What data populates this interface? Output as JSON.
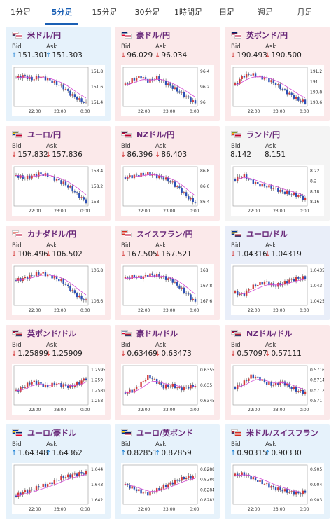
{
  "tabs": [
    {
      "label": "1分足",
      "active": false
    },
    {
      "label": "5分足",
      "active": true
    },
    {
      "label": "15分足",
      "active": false
    },
    {
      "label": "30分足",
      "active": false
    },
    {
      "label": "1時間足",
      "active": false
    },
    {
      "label": "日足",
      "active": false
    },
    {
      "label": "週足",
      "active": false
    },
    {
      "label": "月足",
      "active": false
    }
  ],
  "bid_label": "Bid",
  "ask_label": "Ask",
  "colors": {
    "down_bg": "#fbe9ea",
    "up_bg": "#e6f2fb",
    "flat_bg": "#f4f4f4",
    "down_arrow": "#d43a3a",
    "up_arrow": "#1a7fd4",
    "title": "#6a2a7a",
    "tab_active": "#1a5fb4",
    "ma_line": "#d44ad4",
    "candle_up": "#d13b3b",
    "candle_down": "#2b4fb5"
  },
  "cards": [
    {
      "name": "米ドル/円",
      "flags": [
        "us",
        "jp"
      ],
      "state": "up",
      "bid": "151.301",
      "ask": "151.303",
      "bid_dir": "up",
      "ask_dir": "up",
      "yticks": [
        "151.8",
        "151.6",
        "151.4"
      ],
      "xticks": [
        "22:00",
        "23:00",
        "0:00"
      ],
      "trend": [
        0.75,
        0.8,
        0.7,
        0.78,
        0.72,
        0.6,
        0.5,
        0.3,
        0.15,
        0.05
      ]
    },
    {
      "name": "豪ドル/円",
      "flags": [
        "au",
        "jp"
      ],
      "state": "down",
      "bid": "96.029",
      "ask": "96.034",
      "bid_dir": "down",
      "ask_dir": "down",
      "yticks": [
        "96.4",
        "96.2",
        "96"
      ],
      "xticks": [
        "22:00",
        "23:00",
        "0:00"
      ],
      "trend": [
        0.55,
        0.7,
        0.78,
        0.65,
        0.75,
        0.62,
        0.5,
        0.35,
        0.2,
        0.05
      ]
    },
    {
      "name": "英ポンド/円",
      "flags": [
        "gb",
        "jp"
      ],
      "state": "down",
      "bid": "190.493",
      "ask": "190.500",
      "bid_dir": "down",
      "ask_dir": "down",
      "yticks": [
        "191.2",
        "191",
        "190.8",
        "190.6"
      ],
      "xticks": [
        "22:00",
        "23:00",
        "0:00"
      ],
      "trend": [
        0.55,
        0.8,
        0.85,
        0.78,
        0.72,
        0.6,
        0.45,
        0.3,
        0.15,
        0.08
      ]
    },
    {
      "name": "ユーロ/円",
      "flags": [
        "eu",
        "jp"
      ],
      "state": "down",
      "bid": "157.832",
      "ask": "157.836",
      "bid_dir": "down",
      "ask_dir": "down",
      "yticks": [
        "158.4",
        "158.2",
        "158"
      ],
      "xticks": [
        "22:00",
        "23:00",
        "0:00"
      ],
      "trend": [
        0.8,
        0.72,
        0.78,
        0.85,
        0.8,
        0.7,
        0.6,
        0.45,
        0.25,
        0.08
      ]
    },
    {
      "name": "NZドル/円",
      "flags": [
        "nz",
        "jp"
      ],
      "state": "down",
      "bid": "86.396",
      "ask": "86.403",
      "bid_dir": "down",
      "ask_dir": "down",
      "yticks": [
        "86.8",
        "86.6",
        "86.4"
      ],
      "xticks": [
        "22:00",
        "23:00",
        "0:00"
      ],
      "trend": [
        0.75,
        0.78,
        0.82,
        0.85,
        0.78,
        0.72,
        0.6,
        0.42,
        0.2,
        0.05
      ]
    },
    {
      "name": "ランド/円",
      "flags": [
        "za",
        "jp"
      ],
      "state": "flat",
      "bid": "8.142",
      "ask": "8.151",
      "bid_dir": "none",
      "ask_dir": "none",
      "yticks": [
        "8.22",
        "8.2",
        "8.18",
        "8.16"
      ],
      "xticks": [
        "22:00",
        "23:00",
        "0:00"
      ],
      "trend": [
        0.7,
        0.8,
        0.65,
        0.55,
        0.5,
        0.45,
        0.35,
        0.3,
        0.25,
        0.15
      ]
    },
    {
      "name": "カナダドル/円",
      "flags": [
        "ca",
        "jp"
      ],
      "state": "down",
      "bid": "106.496",
      "ask": "106.502",
      "bid_dir": "down",
      "ask_dir": "down",
      "yticks": [
        "106.8",
        "106.6"
      ],
      "xticks": [
        "22:00",
        "23:00",
        "0:00"
      ],
      "trend": [
        0.65,
        0.7,
        0.78,
        0.85,
        0.8,
        0.72,
        0.6,
        0.4,
        0.2,
        0.08
      ]
    },
    {
      "name": "スイスフラン/円",
      "flags": [
        "ch",
        "jp"
      ],
      "state": "down",
      "bid": "167.505",
      "ask": "167.521",
      "bid_dir": "down",
      "ask_dir": "down",
      "yticks": [
        "168",
        "167.8",
        "167.6"
      ],
      "xticks": [
        "22:00",
        "23:00",
        "0:00"
      ],
      "trend": [
        0.7,
        0.75,
        0.72,
        0.8,
        0.78,
        0.72,
        0.65,
        0.45,
        0.25,
        0.05
      ]
    },
    {
      "name": "ユーロ/ドル",
      "flags": [
        "eu",
        "us"
      ],
      "state": "lavender",
      "bid": "1.04316",
      "ask": "1.04319",
      "bid_dir": "down",
      "ask_dir": "down",
      "yticks": [
        "1.0435",
        "1.043",
        "1.0425"
      ],
      "xticks": [
        "22:00",
        "23:00",
        "0:00"
      ],
      "trend": [
        0.3,
        0.25,
        0.45,
        0.55,
        0.6,
        0.5,
        0.55,
        0.65,
        0.7,
        0.72
      ]
    },
    {
      "name": "英ポンド/ドル",
      "flags": [
        "gb",
        "us"
      ],
      "state": "down",
      "bid": "1.25899",
      "ask": "1.25909",
      "bid_dir": "down",
      "ask_dir": "down",
      "yticks": [
        "1.2595",
        "1.259",
        "1.2585",
        "1.258"
      ],
      "xticks": [
        "22:00",
        "23:00",
        "0:00"
      ],
      "trend": [
        0.35,
        0.45,
        0.6,
        0.55,
        0.45,
        0.55,
        0.5,
        0.45,
        0.55,
        0.7
      ]
    },
    {
      "name": "豪ドル/ドル",
      "flags": [
        "au",
        "us"
      ],
      "state": "down",
      "bid": "0.63469",
      "ask": "0.63473",
      "bid_dir": "down",
      "ask_dir": "down",
      "yticks": [
        "0.6355",
        "0.635",
        "0.6345"
      ],
      "xticks": [
        "22:00",
        "23:00",
        "0:00"
      ],
      "trend": [
        0.3,
        0.35,
        0.55,
        0.75,
        0.6,
        0.45,
        0.5,
        0.4,
        0.45,
        0.5
      ]
    },
    {
      "name": "NZドル/ドル",
      "flags": [
        "nz",
        "us"
      ],
      "state": "down",
      "bid": "0.57097",
      "ask": "0.57111",
      "bid_dir": "down",
      "ask_dir": "down",
      "yticks": [
        "0.5716",
        "0.5714",
        "0.5712",
        "0.571"
      ],
      "xticks": [
        "22:00",
        "23:00",
        "0:00"
      ],
      "trend": [
        0.45,
        0.55,
        0.75,
        0.7,
        0.55,
        0.5,
        0.6,
        0.45,
        0.35,
        0.3
      ]
    },
    {
      "name": "ユーロ/豪ドル",
      "flags": [
        "eu",
        "au"
      ],
      "state": "up",
      "bid": "1.64348",
      "ask": "1.64362",
      "bid_dir": "up",
      "ask_dir": "up",
      "yticks": [
        "1.644",
        "1.643",
        "1.642"
      ],
      "xticks": [
        "22:00",
        "23:00",
        "0:00"
      ],
      "trend": [
        0.2,
        0.3,
        0.35,
        0.45,
        0.5,
        0.6,
        0.7,
        0.75,
        0.8,
        0.82
      ]
    },
    {
      "name": "ユーロ/英ポンド",
      "flags": [
        "eu",
        "gb"
      ],
      "state": "up",
      "bid": "0.82851",
      "ask": "0.82859",
      "bid_dir": "up",
      "ask_dir": "up",
      "yticks": [
        "0.8288",
        "0.8286",
        "0.8284",
        "0.8282"
      ],
      "xticks": [
        "22:00",
        "23:00",
        "0:00"
      ],
      "trend": [
        0.5,
        0.4,
        0.3,
        0.25,
        0.35,
        0.45,
        0.55,
        0.65,
        0.7,
        0.72
      ]
    },
    {
      "name": "米ドル/スイスフラン",
      "flags": [
        "us",
        "ch"
      ],
      "state": "up",
      "bid": "0.90315",
      "ask": "0.90330",
      "bid_dir": "up",
      "ask_dir": "up",
      "yticks": [
        "0.905",
        "0.904",
        "0.903"
      ],
      "xticks": [
        "22:00",
        "23:00",
        "0:00"
      ],
      "trend": [
        0.75,
        0.8,
        0.7,
        0.6,
        0.5,
        0.4,
        0.35,
        0.3,
        0.25,
        0.3
      ]
    }
  ]
}
